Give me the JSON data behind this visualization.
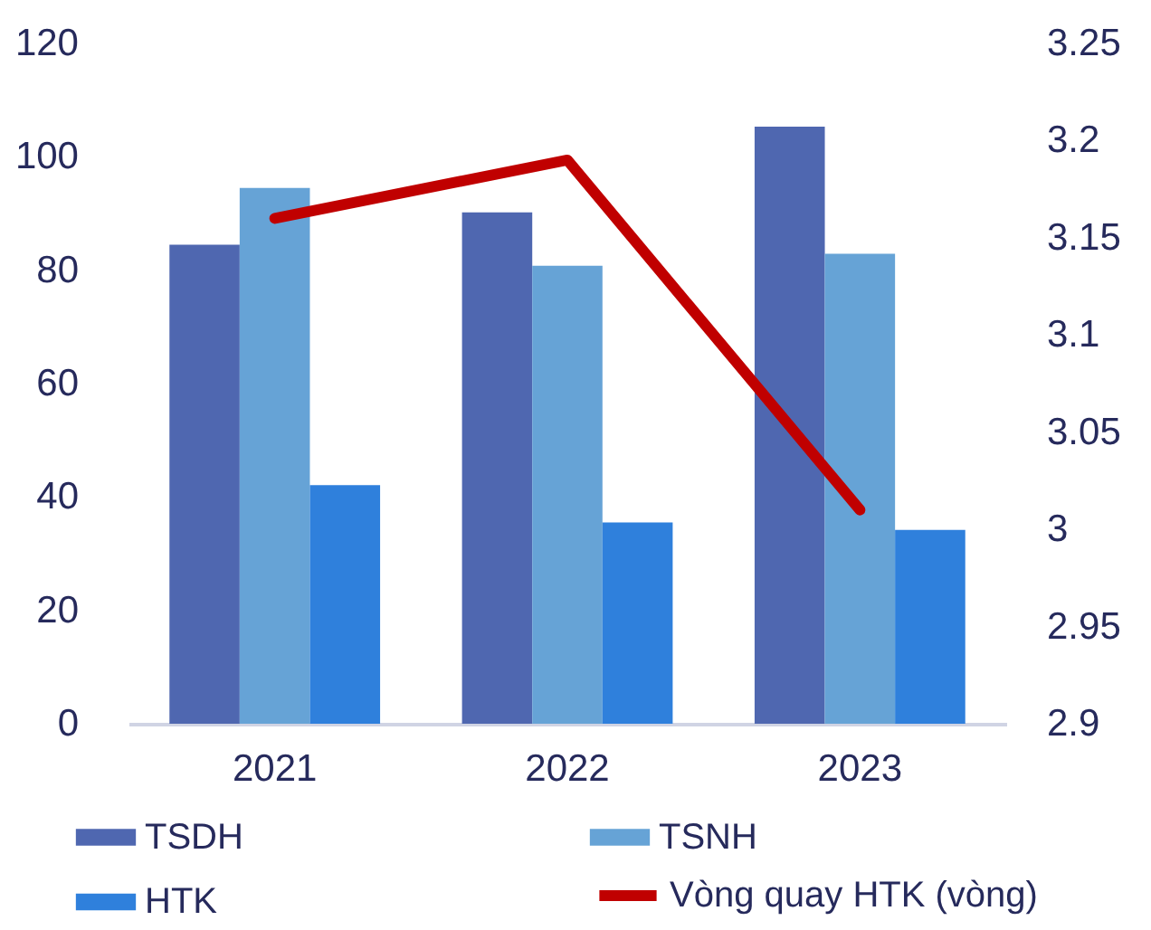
{
  "chart_data": {
    "type": "bar",
    "categories": [
      "2021",
      "2022",
      "2023"
    ],
    "series": [
      {
        "name": "TSDH",
        "color": "#4f67b0",
        "values": [
          84.5,
          90.2,
          105.3
        ]
      },
      {
        "name": "TSNH",
        "color": "#66a3d6",
        "values": [
          94.5,
          80.8,
          82.9
        ]
      },
      {
        "name": "HTK",
        "color": "#2f80dc",
        "values": [
          42.1,
          35.5,
          34.2
        ]
      },
      {
        "name": "Vòng quay HTK (vòng)",
        "color": "#c00000",
        "type": "line",
        "axis": "y2",
        "values": [
          3.16,
          3.19,
          3.01
        ]
      }
    ],
    "ylim": [
      0,
      120
    ],
    "yticks": [
      0,
      20,
      40,
      60,
      80,
      100,
      120
    ],
    "y2lim": [
      2.9,
      3.25
    ],
    "y2ticks": [
      2.9,
      2.95,
      3,
      3.05,
      3.1,
      3.15,
      3.2,
      3.25
    ],
    "legend": "bottom"
  }
}
